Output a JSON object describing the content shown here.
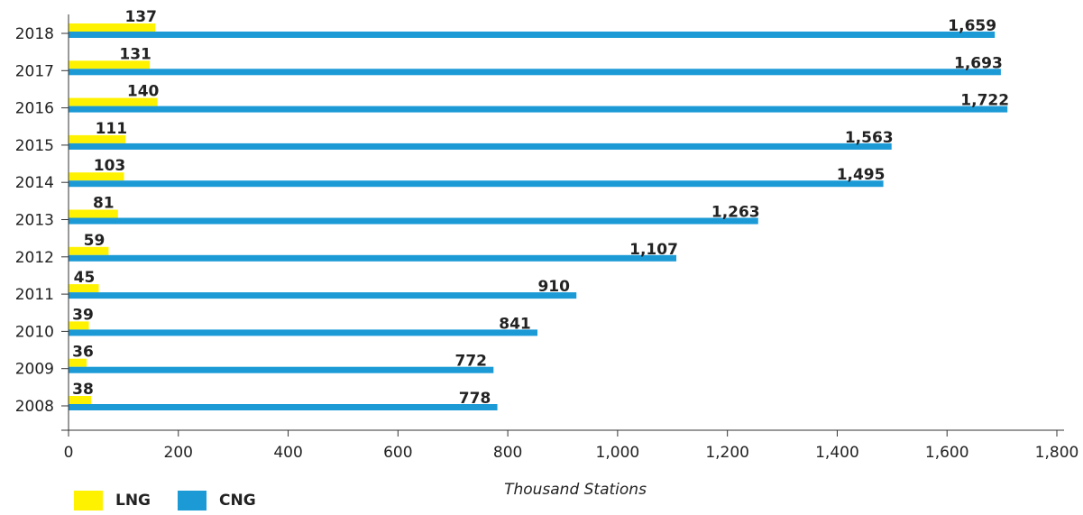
{
  "chart_data": {
    "type": "bar",
    "orientation": "horizontal",
    "categories": [
      "2018",
      "2017",
      "2016",
      "2015",
      "2014",
      "2013",
      "2012",
      "2011",
      "2010",
      "2009",
      "2008"
    ],
    "series": [
      {
        "name": "LNG",
        "color": "#FFF200",
        "values": [
          137,
          131,
          140,
          111,
          103,
          81,
          59,
          45,
          39,
          36,
          38
        ]
      },
      {
        "name": "CNG",
        "color": "#1B9AD6",
        "values": [
          1659,
          1693,
          1722,
          1563,
          1495,
          1263,
          1107,
          910,
          841,
          772,
          778
        ]
      }
    ],
    "data_labels": {
      "LNG": [
        "137",
        "131",
        "140",
        "111",
        "103",
        "81",
        "59",
        "45",
        "39",
        "36",
        "38"
      ],
      "CNG": [
        "1,659",
        "1,693",
        "1,722",
        "1,563",
        "1,495",
        "1,263",
        "1,107",
        "910",
        "841",
        "772",
        "778"
      ]
    },
    "bar_extents": {
      "LNG": [
        158,
        148,
        162,
        104,
        101,
        90,
        73,
        55,
        37,
        33,
        41
      ],
      "CNG": [
        1687,
        1698,
        1710,
        1499,
        1484,
        1256,
        1107,
        925,
        854,
        774,
        781
      ]
    },
    "x_ticks": [
      0,
      200,
      400,
      600,
      800,
      1000,
      1200,
      1400,
      1600,
      1800
    ],
    "x_tick_labels": [
      "0",
      "200",
      "400",
      "600",
      "800",
      "1,000",
      "1,200",
      "1,400",
      "1,600",
      "1,800"
    ],
    "xlim": [
      0,
      1800
    ],
    "xlabel": "Thousand Stations",
    "ylabel": "",
    "title": "",
    "grid": false,
    "legend_position": "bottom-left"
  }
}
